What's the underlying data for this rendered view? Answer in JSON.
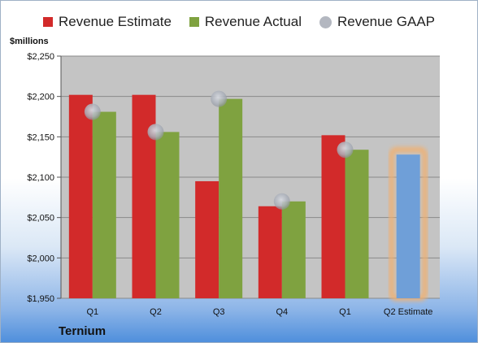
{
  "legend": {
    "estimate": "Revenue Estimate",
    "actual": "Revenue Actual",
    "gaap": "Revenue GAAP"
  },
  "units_label": "$millions",
  "company": "Ternium",
  "colors": {
    "estimate": "#d22a2a",
    "actual": "#7fa240",
    "gaap": "#aeb3bd",
    "forecast": "#6f9fd8",
    "forecast_glow": "#f0b071",
    "plot_bg": "#c4c4c4"
  },
  "chart_data": {
    "type": "bar",
    "categories": [
      "Q1",
      "Q2",
      "Q3",
      "Q4",
      "Q1",
      "Q2 Estimate"
    ],
    "series": [
      {
        "name": "Revenue Estimate",
        "values": [
          2202,
          2202,
          2095,
          2064,
          2152,
          null
        ]
      },
      {
        "name": "Revenue Actual",
        "values": [
          2181,
          2156,
          2197,
          2070,
          2134,
          2128
        ]
      },
      {
        "name": "Revenue GAAP",
        "values": [
          2181,
          2156,
          2197,
          2070,
          2134,
          null
        ]
      }
    ],
    "ylim": [
      1950,
      2250
    ],
    "yticks": [
      1950,
      2000,
      2050,
      2100,
      2150,
      2200,
      2250
    ],
    "ytick_labels": [
      "$1,950",
      "$2,000",
      "$2,050",
      "$2,100",
      "$2,150",
      "$2,200",
      "$2,250"
    ],
    "grid": true,
    "legend_position": "top"
  }
}
